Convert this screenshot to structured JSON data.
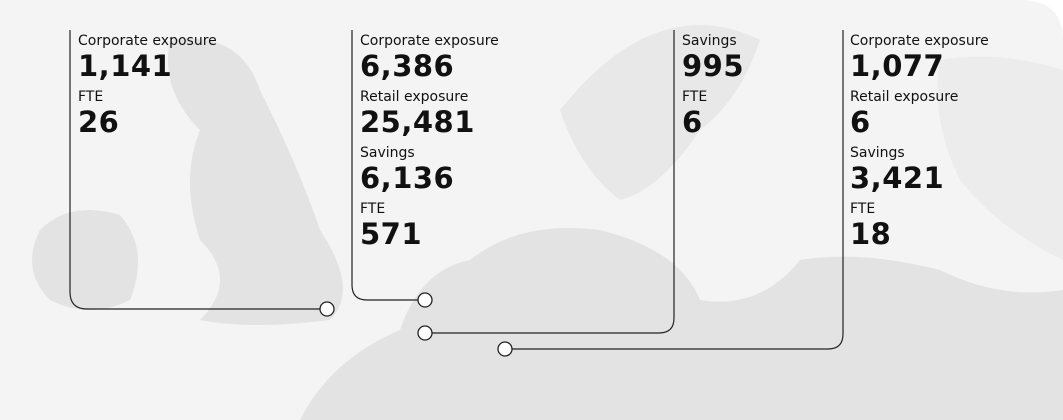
{
  "groups": [
    {
      "metrics": [
        {
          "label": "Corporate exposure",
          "value": "1,141"
        },
        {
          "label": "FTE",
          "value": "26"
        }
      ]
    },
    {
      "metrics": [
        {
          "label": "Corporate exposure",
          "value": "6,386"
        },
        {
          "label": "Retail exposure",
          "value": "25,481"
        },
        {
          "label": "Savings",
          "value": "6,136"
        },
        {
          "label": "FTE",
          "value": "571"
        }
      ]
    },
    {
      "metrics": [
        {
          "label": "Savings",
          "value": "995"
        },
        {
          "label": "FTE",
          "value": "6"
        }
      ]
    },
    {
      "metrics": [
        {
          "label": "Corporate exposure",
          "value": "1,077"
        },
        {
          "label": "Retail exposure",
          "value": "6"
        },
        {
          "label": "Savings",
          "value": "3,421"
        },
        {
          "label": "FTE",
          "value": "18"
        }
      ]
    }
  ]
}
